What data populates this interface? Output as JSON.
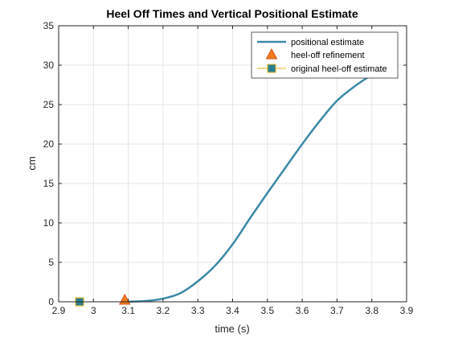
{
  "colors": {
    "curve": "#3a8aa6",
    "marker_face": "#ef7d1b",
    "marker_edge_refinement": "#d95319",
    "marker_face_original": "#2b7f8f",
    "marker_edge_original": "#edb120",
    "grid": "#e6e6e6",
    "axis": "#262626"
  },
  "chart_data": {
    "type": "line",
    "title": "Heel Off Times and Vertical Positional Estimate",
    "xlabel": "time (s)",
    "ylabel": "cm",
    "xlim": [
      2.9,
      3.9
    ],
    "ylim": [
      0,
      35
    ],
    "xticks": [
      2.9,
      3.0,
      3.1,
      3.2,
      3.3,
      3.4,
      3.5,
      3.6,
      3.7,
      3.8,
      3.9
    ],
    "xtick_labels": [
      "2.9",
      "3",
      "3.1",
      "3.2",
      "3.3",
      "3.4",
      "3.5",
      "3.6",
      "3.7",
      "3.8",
      "3.9"
    ],
    "yticks": [
      0,
      5,
      10,
      15,
      20,
      25,
      30,
      35
    ],
    "ytick_labels": [
      "0",
      "5",
      "10",
      "15",
      "20",
      "25",
      "30",
      "35"
    ],
    "grid": true,
    "legend_position": "top-right",
    "series": [
      {
        "name": "positional estimate",
        "kind": "line",
        "x": [
          3.09,
          3.15,
          3.2,
          3.25,
          3.3,
          3.35,
          3.4,
          3.45,
          3.5,
          3.55,
          3.6,
          3.65,
          3.7,
          3.75,
          3.8
        ],
        "y": [
          0,
          0.1,
          0.4,
          1.1,
          2.6,
          4.6,
          7.3,
          10.6,
          13.8,
          16.9,
          20.0,
          22.9,
          25.5,
          27.3,
          28.8
        ]
      },
      {
        "name": "heel-off refinement",
        "kind": "marker",
        "marker": "triangle",
        "x": [
          3.09
        ],
        "y": [
          0.2
        ]
      },
      {
        "name": "original heel-off estimate",
        "kind": "marker",
        "marker": "square",
        "x": [
          2.96
        ],
        "y": [
          0
        ]
      }
    ]
  }
}
